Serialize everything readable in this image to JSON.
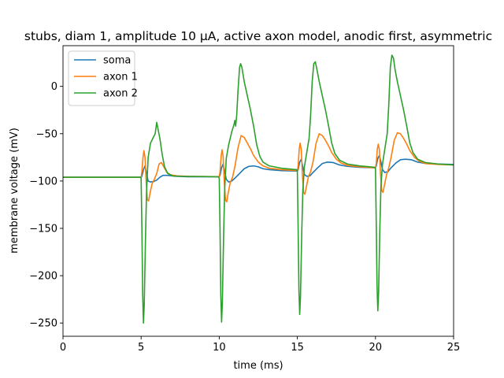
{
  "chart_data": {
    "type": "line",
    "title": "stubs, diam 1, amplitude 10 μA, active axon model, anodic first, asymmetric",
    "xlabel": "time (ms)",
    "ylabel": "membrane voltage (mV)",
    "xlim": [
      0,
      25
    ],
    "ylim": [
      -264,
      43
    ],
    "xticks": [
      0,
      5,
      10,
      15,
      20,
      25
    ],
    "yticks": [
      0,
      -50,
      -100,
      -150,
      -200,
      -250
    ],
    "grid": false,
    "legend_position": "top-left",
    "series": [
      {
        "name": "soma",
        "color": "#1f77b4",
        "points": [
          [
            0,
            -96
          ],
          [
            5.0,
            -96
          ],
          [
            5.05,
            -95
          ],
          [
            5.15,
            -88
          ],
          [
            5.25,
            -84
          ],
          [
            5.35,
            -92
          ],
          [
            5.45,
            -100
          ],
          [
            5.6,
            -101
          ],
          [
            5.8,
            -100.5
          ],
          [
            6.0,
            -99
          ],
          [
            6.2,
            -96
          ],
          [
            6.4,
            -94
          ],
          [
            6.7,
            -94
          ],
          [
            7.2,
            -95
          ],
          [
            8,
            -95.5
          ],
          [
            10.0,
            -95.5
          ],
          [
            10.05,
            -94
          ],
          [
            10.15,
            -86
          ],
          [
            10.25,
            -82
          ],
          [
            10.35,
            -90
          ],
          [
            10.45,
            -98
          ],
          [
            10.6,
            -101
          ],
          [
            10.8,
            -100
          ],
          [
            11.0,
            -97
          ],
          [
            11.3,
            -92
          ],
          [
            11.6,
            -87
          ],
          [
            11.9,
            -84.5
          ],
          [
            12.2,
            -84
          ],
          [
            12.5,
            -85
          ],
          [
            12.8,
            -87
          ],
          [
            13.2,
            -88
          ],
          [
            14,
            -89
          ],
          [
            15.0,
            -89.5
          ],
          [
            15.05,
            -88
          ],
          [
            15.15,
            -80
          ],
          [
            15.25,
            -77
          ],
          [
            15.35,
            -85
          ],
          [
            15.45,
            -93
          ],
          [
            15.6,
            -95
          ],
          [
            15.8,
            -94.5
          ],
          [
            16.0,
            -91
          ],
          [
            16.3,
            -86
          ],
          [
            16.6,
            -81.5
          ],
          [
            16.9,
            -80
          ],
          [
            17.3,
            -80.5
          ],
          [
            17.7,
            -83
          ],
          [
            18.2,
            -84.5
          ],
          [
            19,
            -85.5
          ],
          [
            20.0,
            -86
          ],
          [
            20.05,
            -84
          ],
          [
            20.15,
            -76
          ],
          [
            20.25,
            -73
          ],
          [
            20.35,
            -80
          ],
          [
            20.45,
            -88
          ],
          [
            20.6,
            -91
          ],
          [
            20.8,
            -90
          ],
          [
            21.0,
            -86
          ],
          [
            21.3,
            -81
          ],
          [
            21.6,
            -77.5
          ],
          [
            21.9,
            -77
          ],
          [
            22.3,
            -77.5
          ],
          [
            22.7,
            -80
          ],
          [
            23.2,
            -81.5
          ],
          [
            24,
            -82
          ],
          [
            25,
            -82.5
          ]
        ]
      },
      {
        "name": "axon 1",
        "color": "#ff7f0e",
        "points": [
          [
            0,
            -96
          ],
          [
            5.0,
            -96
          ],
          [
            5.05,
            -90
          ],
          [
            5.12,
            -75
          ],
          [
            5.18,
            -68
          ],
          [
            5.25,
            -75
          ],
          [
            5.32,
            -100
          ],
          [
            5.4,
            -120
          ],
          [
            5.48,
            -121
          ],
          [
            5.58,
            -112
          ],
          [
            5.7,
            -103
          ],
          [
            5.85,
            -98
          ],
          [
            6.0,
            -92
          ],
          [
            6.15,
            -82
          ],
          [
            6.3,
            -80.5
          ],
          [
            6.45,
            -85
          ],
          [
            6.65,
            -91
          ],
          [
            6.9,
            -93.5
          ],
          [
            7.3,
            -94.5
          ],
          [
            8,
            -95
          ],
          [
            10.0,
            -95.5
          ],
          [
            10.05,
            -90
          ],
          [
            10.12,
            -74
          ],
          [
            10.18,
            -67
          ],
          [
            10.25,
            -74
          ],
          [
            10.32,
            -100
          ],
          [
            10.4,
            -120
          ],
          [
            10.48,
            -122
          ],
          [
            10.58,
            -112
          ],
          [
            10.7,
            -102
          ],
          [
            10.85,
            -96
          ],
          [
            11.0,
            -85
          ],
          [
            11.2,
            -65
          ],
          [
            11.4,
            -52
          ],
          [
            11.6,
            -54
          ],
          [
            11.8,
            -60
          ],
          [
            12.0,
            -66
          ],
          [
            12.2,
            -73
          ],
          [
            12.5,
            -80
          ],
          [
            12.8,
            -84
          ],
          [
            13.2,
            -86.5
          ],
          [
            14,
            -88
          ],
          [
            15.0,
            -89
          ],
          [
            15.05,
            -84
          ],
          [
            15.12,
            -66
          ],
          [
            15.18,
            -60
          ],
          [
            15.25,
            -67
          ],
          [
            15.32,
            -93
          ],
          [
            15.4,
            -112
          ],
          [
            15.48,
            -114
          ],
          [
            15.58,
            -106
          ],
          [
            15.7,
            -96
          ],
          [
            15.85,
            -90
          ],
          [
            16.0,
            -80
          ],
          [
            16.2,
            -60
          ],
          [
            16.4,
            -50
          ],
          [
            16.6,
            -52
          ],
          [
            16.8,
            -57
          ],
          [
            17.0,
            -63
          ],
          [
            17.2,
            -70
          ],
          [
            17.5,
            -77
          ],
          [
            17.8,
            -81
          ],
          [
            18.2,
            -83.5
          ],
          [
            19,
            -85
          ],
          [
            20.0,
            -86
          ],
          [
            20.05,
            -81
          ],
          [
            20.12,
            -66
          ],
          [
            20.18,
            -61
          ],
          [
            20.25,
            -67
          ],
          [
            20.32,
            -92
          ],
          [
            20.4,
            -110
          ],
          [
            20.48,
            -112
          ],
          [
            20.58,
            -104
          ],
          [
            20.7,
            -94
          ],
          [
            20.85,
            -86
          ],
          [
            21.0,
            -75
          ],
          [
            21.2,
            -57
          ],
          [
            21.4,
            -49
          ],
          [
            21.6,
            -50
          ],
          [
            21.8,
            -55
          ],
          [
            22.0,
            -61
          ],
          [
            22.2,
            -68
          ],
          [
            22.5,
            -75
          ],
          [
            22.8,
            -79
          ],
          [
            23.2,
            -81.5
          ],
          [
            24,
            -82.5
          ],
          [
            25,
            -83
          ]
        ]
      },
      {
        "name": "axon 2",
        "color": "#2ca02c",
        "points": [
          [
            0,
            -96
          ],
          [
            4.95,
            -96
          ],
          [
            5.0,
            -97
          ],
          [
            5.05,
            -150
          ],
          [
            5.1,
            -220
          ],
          [
            5.15,
            -250
          ],
          [
            5.2,
            -230
          ],
          [
            5.28,
            -160
          ],
          [
            5.35,
            -110
          ],
          [
            5.45,
            -75
          ],
          [
            5.6,
            -60
          ],
          [
            5.75,
            -55
          ],
          [
            5.9,
            -50
          ],
          [
            6.0,
            -38
          ],
          [
            6.08,
            -45
          ],
          [
            6.2,
            -55
          ],
          [
            6.35,
            -72
          ],
          [
            6.5,
            -85
          ],
          [
            6.7,
            -92
          ],
          [
            7.0,
            -94.5
          ],
          [
            7.5,
            -95
          ],
          [
            9.95,
            -95.5
          ],
          [
            10.0,
            -97
          ],
          [
            10.05,
            -150
          ],
          [
            10.1,
            -220
          ],
          [
            10.15,
            -249
          ],
          [
            10.2,
            -228
          ],
          [
            10.28,
            -158
          ],
          [
            10.35,
            -108
          ],
          [
            10.45,
            -76
          ],
          [
            10.6,
            -62
          ],
          [
            10.8,
            -48
          ],
          [
            10.95,
            -40
          ],
          [
            11.0,
            -36
          ],
          [
            11.05,
            -42
          ],
          [
            11.12,
            -30
          ],
          [
            11.2,
            -5
          ],
          [
            11.3,
            20
          ],
          [
            11.37,
            24
          ],
          [
            11.45,
            20
          ],
          [
            11.6,
            5
          ],
          [
            11.8,
            -10
          ],
          [
            12.0,
            -25
          ],
          [
            12.2,
            -42
          ],
          [
            12.4,
            -62
          ],
          [
            12.6,
            -74
          ],
          [
            12.8,
            -80
          ],
          [
            13.2,
            -84
          ],
          [
            14,
            -86.5
          ],
          [
            14.95,
            -88
          ],
          [
            15.0,
            -90
          ],
          [
            15.05,
            -150
          ],
          [
            15.1,
            -215
          ],
          [
            15.15,
            -241
          ],
          [
            15.2,
            -222
          ],
          [
            15.28,
            -155
          ],
          [
            15.35,
            -110
          ],
          [
            15.45,
            -85
          ],
          [
            15.6,
            -70
          ],
          [
            15.75,
            -55
          ],
          [
            15.85,
            -30
          ],
          [
            15.95,
            5
          ],
          [
            16.05,
            24
          ],
          [
            16.15,
            26
          ],
          [
            16.25,
            18
          ],
          [
            16.4,
            5
          ],
          [
            16.6,
            -10
          ],
          [
            16.8,
            -25
          ],
          [
            17.0,
            -42
          ],
          [
            17.2,
            -60
          ],
          [
            17.4,
            -71
          ],
          [
            17.7,
            -78
          ],
          [
            18.2,
            -82
          ],
          [
            19,
            -84
          ],
          [
            19.95,
            -85.5
          ],
          [
            20.0,
            -87
          ],
          [
            20.05,
            -145
          ],
          [
            20.1,
            -210
          ],
          [
            20.15,
            -237
          ],
          [
            20.2,
            -218
          ],
          [
            20.28,
            -150
          ],
          [
            20.35,
            -105
          ],
          [
            20.45,
            -82
          ],
          [
            20.6,
            -66
          ],
          [
            20.75,
            -50
          ],
          [
            20.85,
            -20
          ],
          [
            20.95,
            20
          ],
          [
            21.05,
            33
          ],
          [
            21.15,
            30
          ],
          [
            21.25,
            18
          ],
          [
            21.4,
            5
          ],
          [
            21.6,
            -10
          ],
          [
            21.8,
            -25
          ],
          [
            22.0,
            -42
          ],
          [
            22.2,
            -60
          ],
          [
            22.4,
            -70
          ],
          [
            22.7,
            -77
          ],
          [
            23.2,
            -80.5
          ],
          [
            24,
            -82
          ],
          [
            25,
            -83
          ]
        ]
      }
    ]
  }
}
